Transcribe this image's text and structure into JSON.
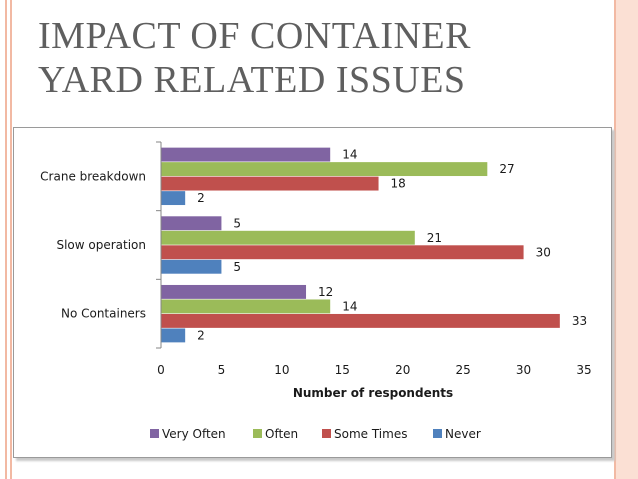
{
  "slide": {
    "title_line1": "IMPACT OF CONTAINER",
    "title_line2": "YARD RELATED ISSUES"
  },
  "chart_data": {
    "type": "bar",
    "orientation": "horizontal",
    "categories": [
      "Crane breakdown",
      "Slow operation",
      "No Containers"
    ],
    "series": [
      {
        "name": "Very Often",
        "color": "#8064a2",
        "values": [
          14,
          5,
          12
        ]
      },
      {
        "name": "Often",
        "color": "#9bbb59",
        "values": [
          27,
          21,
          14
        ]
      },
      {
        "name": "Some Times",
        "color": "#c0504d",
        "values": [
          18,
          30,
          33
        ]
      },
      {
        "name": "Never",
        "color": "#4f81bd",
        "values": [
          2,
          5,
          2
        ]
      }
    ],
    "xlabel": "Number of respondents",
    "ylabel": "",
    "xlim": [
      0,
      35
    ],
    "xticks": [
      0,
      5,
      10,
      15,
      20,
      25,
      30,
      35
    ],
    "grid": false,
    "legend": "bottom",
    "data_labels": true
  }
}
